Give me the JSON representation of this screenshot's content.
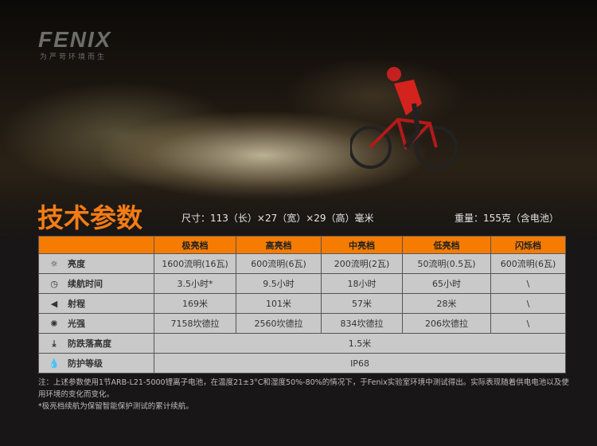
{
  "brand": {
    "logo": "FENIX",
    "tagline": "为严苛环境而生"
  },
  "header": {
    "title": "技术参数",
    "dimensions": "尺寸：113（长）×27（宽）×29（高）毫米",
    "weight": "重量：155克（含电池）"
  },
  "table": {
    "columns": [
      "",
      "极亮档",
      "高亮档",
      "中亮档",
      "低亮档",
      "闪烁档"
    ],
    "rows": [
      {
        "icon": "sun-icon",
        "label": "亮度",
        "values": [
          "1600流明(16瓦)",
          "600流明(6瓦)",
          "200流明(2瓦)",
          "50流明(0.5瓦)",
          "600流明(6瓦)"
        ]
      },
      {
        "icon": "clock-icon",
        "label": "续航时间",
        "values": [
          "3.5小时*",
          "9.5小时",
          "18小时",
          "65小时",
          "\\"
        ]
      },
      {
        "icon": "beam-icon",
        "label": "射程",
        "values": [
          "169米",
          "101米",
          "57米",
          "28米",
          "\\"
        ]
      },
      {
        "icon": "intensity-icon",
        "label": "光强",
        "values": [
          "7158坎德拉",
          "2560坎德拉",
          "834坎德拉",
          "206坎德拉",
          "\\"
        ]
      },
      {
        "icon": "drop-icon",
        "label": "防跌落高度",
        "span_value": "1.5米"
      },
      {
        "icon": "water-icon",
        "label": "防护等级",
        "span_value": "IP68"
      }
    ]
  },
  "notes": [
    "注：上述参数使用1节ARB-L21-5000锂离子电池，在温度21±3°C和湿度50%-80%的情况下，于Fenix实验室环境中测试得出。实际表现随着供电电池以及使用环境的变化而变化。",
    "*极亮档续航为保留智能保护测试的累计续航。"
  ]
}
